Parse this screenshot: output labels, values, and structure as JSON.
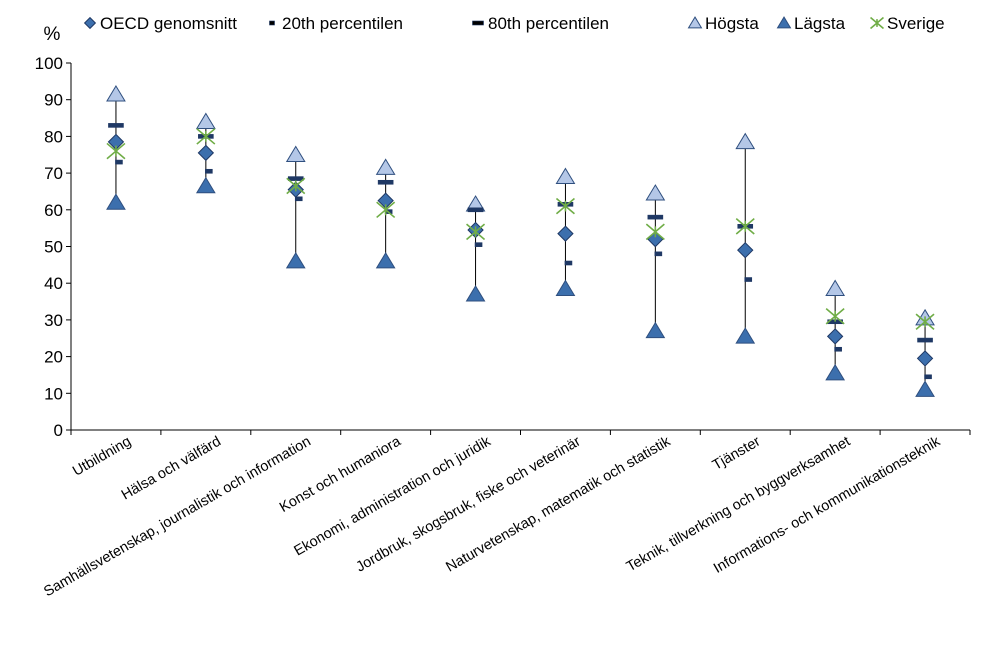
{
  "chart_data": {
    "type": "scatter",
    "ylabel": "%",
    "ylim": [
      0,
      100
    ],
    "yticks": [
      "0",
      "10",
      "20",
      "30",
      "40",
      "50",
      "60",
      "70",
      "80",
      "90",
      "100"
    ],
    "categories": [
      "Utbildning",
      "Hälsa och välfärd",
      "Samhällsvetenskap, journalistik och information",
      "Konst och humaniora",
      "Ekonomi, administration och juridik",
      "Jordbruk, skogsbruk, fiske och veterinär",
      "Naturvetenskap, matematik och statistik",
      "Tjänster",
      "Teknik, tillverkning och byggverksamhet",
      "Informations- och kommunikationsteknik"
    ],
    "legend_position": "top",
    "series": [
      {
        "name": "OECD genomsnitt",
        "marker": "diamond",
        "color": "#3c6fad",
        "values": [
          78.5,
          75.5,
          65.5,
          62.5,
          54.5,
          53.5,
          52.0,
          49.0,
          25.5,
          19.5
        ]
      },
      {
        "name": "20th percentilen",
        "marker": "short-dash",
        "color": "#1f3864",
        "values": [
          73.0,
          70.5,
          63.0,
          59.5,
          50.5,
          45.5,
          48.0,
          41.0,
          22.0,
          14.5
        ]
      },
      {
        "name": "80th percentilen",
        "marker": "dash",
        "color": "#1f3864",
        "values": [
          83.0,
          80.0,
          68.5,
          67.5,
          60.0,
          61.5,
          58.0,
          55.5,
          29.5,
          24.5
        ]
      },
      {
        "name": "Högsta",
        "marker": "triangle",
        "color": "#b4c7e7",
        "values": [
          91.5,
          84.0,
          75.0,
          71.5,
          61.5,
          69.0,
          64.5,
          78.5,
          38.5,
          30.5
        ]
      },
      {
        "name": "Lägsta",
        "marker": "triangle",
        "color": "#3c6fad",
        "values": [
          62.0,
          66.5,
          46.0,
          46.0,
          37.0,
          38.5,
          27.0,
          25.5,
          15.5,
          11.0
        ]
      },
      {
        "name": "Sverige",
        "marker": "asterisk",
        "color": "#70ad47",
        "values": [
          76.0,
          80.0,
          66.5,
          60.0,
          54.0,
          61.0,
          54.0,
          55.5,
          31.0,
          29.5
        ]
      }
    ]
  }
}
